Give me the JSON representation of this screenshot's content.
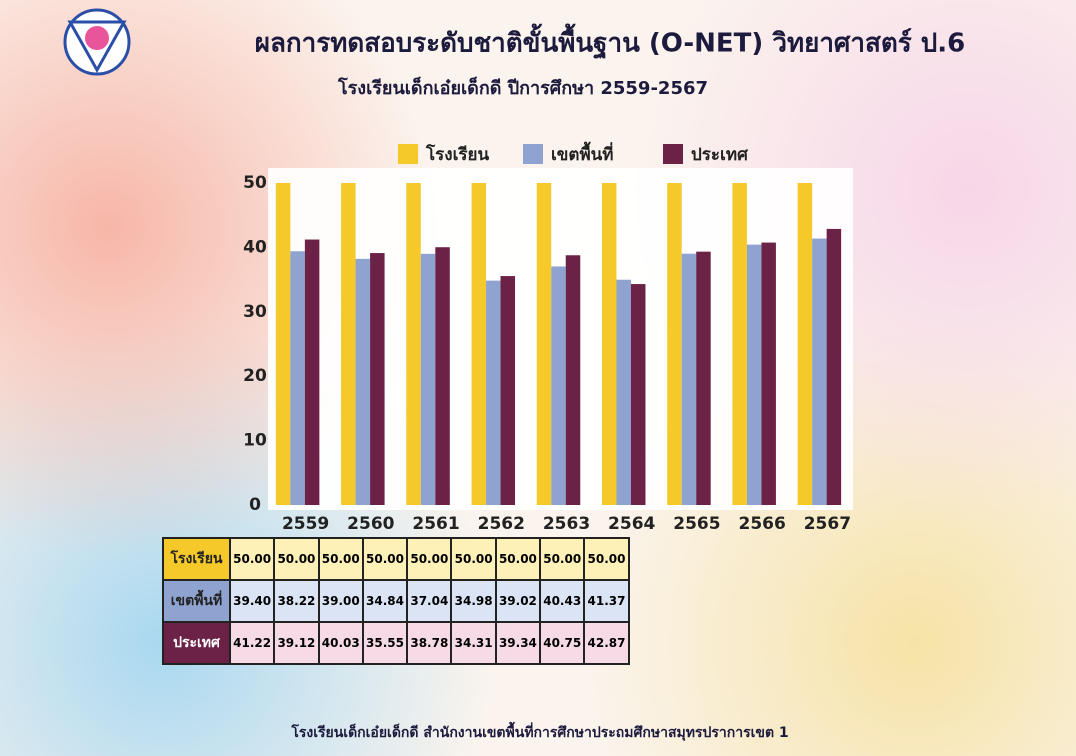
{
  "title": "ผลการทดสอบระดับชาติขั้นพื้นฐาน (O-NET) วิทยาศาสตร์ ป.6",
  "subtitle": "โรงเรียนเด็กเอ๋ยเด็กดี  ปีการศึกษา 2559-2567",
  "footer": "โรงเรียนเด็กเอ๋ยเด็กดี  สำนักงานเขตพื้นที่การศึกษาประถมศึกษาสมุทรปราการเขต 1",
  "chart_data": {
    "type": "bar",
    "categories": [
      "2559",
      "2560",
      "2561",
      "2562",
      "2563",
      "2564",
      "2565",
      "2566",
      "2567"
    ],
    "series": [
      {
        "name": "โรงเรียน",
        "color": "#f5c92a",
        "values": [
          50,
          50,
          50,
          50,
          50,
          50,
          50,
          50,
          50
        ],
        "value_labels": [
          "50.00",
          "50.00",
          "50.00",
          "50.00",
          "50.00",
          "50.00",
          "50.00",
          "50.00",
          "50.00"
        ]
      },
      {
        "name": "เขตพื้นที่",
        "color": "#8fa3d0",
        "values": [
          39.4,
          38.22,
          39,
          34.84,
          37.04,
          34.98,
          39.02,
          40.43,
          41.37
        ],
        "value_labels": [
          "39.40",
          "38.22",
          "39.00",
          "34.84",
          "37.04",
          "34.98",
          "39.02",
          "40.43",
          "41.37"
        ]
      },
      {
        "name": "ประเทศ",
        "color": "#6c2247",
        "values": [
          41.22,
          39.12,
          40.03,
          35.55,
          38.78,
          34.31,
          39.34,
          40.75,
          42.87
        ],
        "value_labels": [
          "41.22",
          "39.12",
          "40.03",
          "35.55",
          "38.78",
          "34.31",
          "39.34",
          "40.75",
          "42.87"
        ]
      }
    ],
    "ylim": [
      0,
      50
    ],
    "yticks": [
      0,
      10,
      20,
      30,
      40,
      50
    ],
    "legend": "top"
  }
}
